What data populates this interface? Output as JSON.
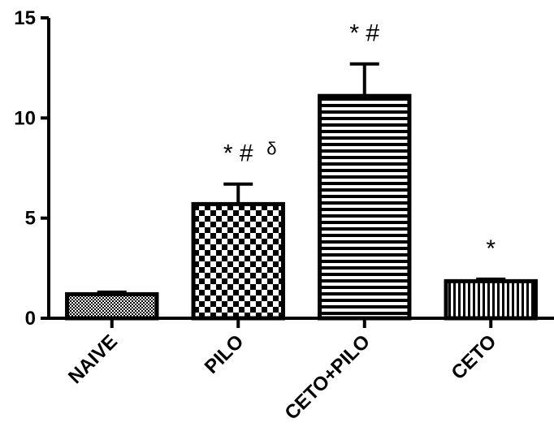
{
  "chart_data": {
    "type": "bar",
    "title": "",
    "xlabel": "",
    "ylabel": "",
    "ylim": [
      0,
      15
    ],
    "yticks": [
      0,
      5,
      10,
      15
    ],
    "categories": [
      "NAIVE",
      "PILO",
      "CETO+PILO",
      "CETO"
    ],
    "values": [
      1.2,
      5.7,
      11.1,
      1.85
    ],
    "errors": [
      0.1,
      1.0,
      1.6,
      0.1
    ],
    "patterns": [
      "fine-dots",
      "checker",
      "horizontal-lines",
      "vertical-lines"
    ],
    "annotations": [
      "",
      "* #",
      "* #",
      "*"
    ],
    "annotation_superscripts": [
      "",
      "δ",
      "",
      ""
    ],
    "grid": false,
    "legend": "none"
  }
}
